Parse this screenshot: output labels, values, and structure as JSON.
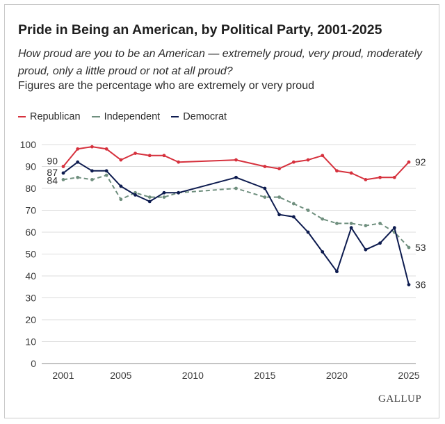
{
  "title": "Pride in Being an American, by Political Party, 2001-2025",
  "subtitle": "How proud are you to be an American — extremely proud, very proud, moderately proud, only a little proud or not at all proud?",
  "note": "Figures are the percentage who are extremely or very proud",
  "brand": "GALLUP",
  "colors": {
    "republican": "#d6313d",
    "independent": "#6f8f7e",
    "democrat": "#0d1b4f",
    "grid": "#dcdcdc"
  },
  "chart_data": {
    "type": "line",
    "xlim": [
      2001,
      2025
    ],
    "ylim": [
      0,
      100
    ],
    "x_ticks": [
      2001,
      2005,
      2010,
      2015,
      2020,
      2025
    ],
    "y_ticks": [
      0,
      10,
      20,
      30,
      40,
      50,
      60,
      70,
      80,
      90,
      100
    ],
    "grid": true,
    "legend_position": "top-left",
    "series": [
      {
        "name": "Republican",
        "style": "solid",
        "x": [
          2001,
          2002,
          2003,
          2004,
          2005,
          2006,
          2007,
          2008,
          2009,
          2013,
          2015,
          2016,
          2017,
          2018,
          2019,
          2020,
          2021,
          2022,
          2023,
          2024,
          2025
        ],
        "y": [
          90,
          98,
          99,
          98,
          93,
          96,
          95,
          95,
          92,
          93,
          90,
          89,
          92,
          93,
          95,
          88,
          87,
          84,
          85,
          85,
          92
        ],
        "start_label": "90",
        "end_label": "92"
      },
      {
        "name": "Independent",
        "style": "dashed",
        "x": [
          2001,
          2002,
          2003,
          2004,
          2005,
          2006,
          2007,
          2008,
          2009,
          2013,
          2015,
          2016,
          2017,
          2018,
          2019,
          2020,
          2021,
          2022,
          2023,
          2024,
          2025
        ],
        "y": [
          84,
          85,
          84,
          86,
          75,
          78,
          76,
          76,
          78,
          80,
          76,
          76,
          73,
          70,
          66,
          64,
          64,
          63,
          64,
          60,
          53
        ],
        "start_label": "84",
        "end_label": "53"
      },
      {
        "name": "Democrat",
        "style": "solid",
        "x": [
          2001,
          2002,
          2003,
          2004,
          2005,
          2006,
          2007,
          2008,
          2009,
          2013,
          2015,
          2016,
          2017,
          2018,
          2019,
          2020,
          2021,
          2022,
          2023,
          2024,
          2025
        ],
        "y": [
          87,
          92,
          88,
          88,
          81,
          77,
          74,
          78,
          78,
          85,
          80,
          68,
          67,
          60,
          51,
          42,
          62,
          52,
          55,
          62,
          36
        ],
        "start_label": "87",
        "end_label": "36"
      }
    ]
  }
}
